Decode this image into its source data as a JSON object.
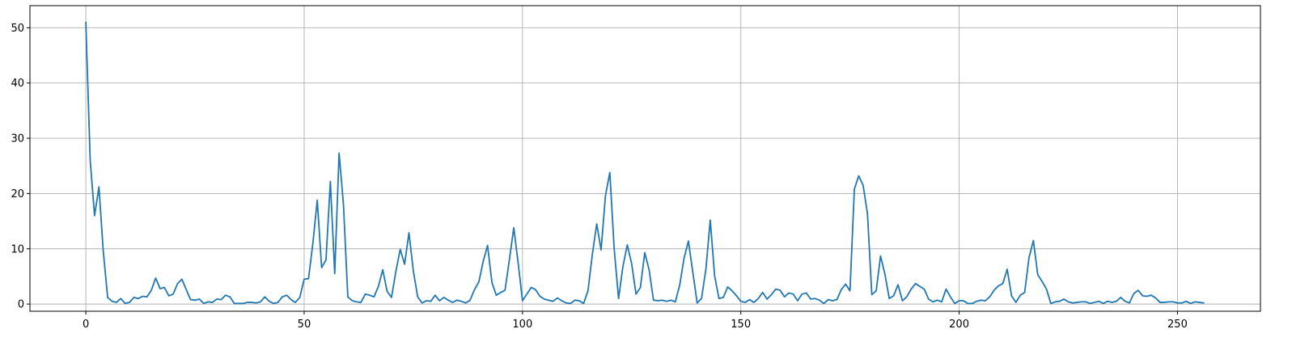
{
  "colors": {
    "series": "#1f77b4",
    "grid": "#b0b0b0",
    "axis": "#000000"
  },
  "chart_data": {
    "type": "line",
    "title": "",
    "xlabel": "",
    "ylabel": "",
    "xlim": [
      -12.8,
      269
    ],
    "ylim": [
      -1.3,
      54
    ],
    "grid": true,
    "legend": "none",
    "x_ticks": [
      0,
      50,
      100,
      150,
      200,
      250
    ],
    "y_ticks": [
      0,
      10,
      20,
      30,
      40,
      50
    ],
    "x_tick_labels": [
      "0",
      "50",
      "100",
      "150",
      "200",
      "250"
    ],
    "y_tick_labels": [
      "0",
      "10",
      "20",
      "30",
      "40",
      "50"
    ],
    "series": [
      {
        "x_start": 0,
        "x_step": 1,
        "values": [
          51.0,
          26.0,
          16.0,
          21.2,
          9.5,
          1.2,
          0.5,
          0.3,
          1.0,
          0.1,
          0.3,
          1.2,
          1.0,
          1.4,
          1.3,
          2.5,
          4.7,
          2.8,
          3.0,
          1.5,
          1.8,
          3.7,
          4.5,
          2.6,
          0.8,
          0.7,
          0.9,
          0.1,
          0.4,
          0.3,
          0.9,
          0.8,
          1.6,
          1.3,
          0.1,
          0.1,
          0.1,
          0.3,
          0.3,
          0.2,
          0.4,
          1.3,
          0.5,
          0.1,
          0.3,
          1.3,
          1.6,
          0.8,
          0.3,
          1.2,
          4.5,
          4.6,
          11.0,
          18.8,
          6.6,
          8.0,
          22.2,
          5.5,
          27.3,
          18.0,
          1.3,
          0.6,
          0.4,
          0.3,
          1.8,
          1.6,
          1.3,
          3.2,
          6.2,
          2.3,
          1.2,
          5.9,
          9.9,
          7.2,
          12.9,
          6.0,
          1.3,
          0.2,
          0.6,
          0.5,
          1.6,
          0.6,
          1.2,
          0.7,
          0.3,
          0.7,
          0.5,
          0.2,
          0.7,
          2.6,
          4.0,
          7.7,
          10.6,
          3.9,
          1.6,
          2.1,
          2.5,
          8.0,
          13.8,
          7.5,
          0.6,
          1.8,
          3.0,
          2.6,
          1.4,
          0.9,
          0.7,
          0.5,
          1.1,
          0.6,
          0.2,
          0.1,
          0.7,
          0.6,
          0.1,
          2.4,
          9.0,
          14.5,
          9.8,
          19.6,
          23.8,
          10.0,
          1.0,
          6.8,
          10.7,
          7.3,
          1.8,
          3.0,
          9.3,
          6.2,
          0.7,
          0.6,
          0.7,
          0.5,
          0.7,
          0.4,
          3.4,
          8.3,
          11.4,
          5.8,
          0.2,
          1.0,
          6.3,
          15.2,
          5.1,
          1.0,
          1.2,
          3.1,
          2.4,
          1.5,
          0.5,
          0.3,
          0.8,
          0.3,
          1.0,
          2.1,
          0.9,
          1.7,
          2.7,
          2.5,
          1.3,
          2.0,
          1.8,
          0.6,
          1.8,
          2.0,
          0.9,
          1.0,
          0.7,
          0.1,
          0.8,
          0.6,
          0.8,
          2.6,
          3.6,
          2.4,
          20.8,
          23.2,
          21.5,
          16.4,
          1.7,
          2.4,
          8.7,
          5.4,
          1.0,
          1.5,
          3.5,
          0.6,
          1.3,
          2.7,
          3.7,
          3.2,
          2.7,
          0.9,
          0.4,
          0.7,
          0.4,
          2.7,
          1.3,
          0.1,
          0.6,
          0.6,
          0.1,
          0.1,
          0.5,
          0.7,
          0.6,
          1.3,
          2.5,
          3.3,
          3.7,
          6.3,
          1.5,
          0.3,
          1.6,
          2.1,
          8.4,
          11.5,
          5.3,
          4.1,
          2.7,
          0.1,
          0.4,
          0.5,
          0.9,
          0.4,
          0.2,
          0.3,
          0.4,
          0.4,
          0.1,
          0.3,
          0.5,
          0.1,
          0.5,
          0.3,
          0.5,
          1.2,
          0.5,
          0.2,
          1.9,
          2.5,
          1.5,
          1.4,
          1.6,
          1.1,
          0.3,
          0.3,
          0.4,
          0.4,
          0.2,
          0.2,
          0.5,
          0.1,
          0.4,
          0.3,
          0.2
        ]
      }
    ]
  }
}
